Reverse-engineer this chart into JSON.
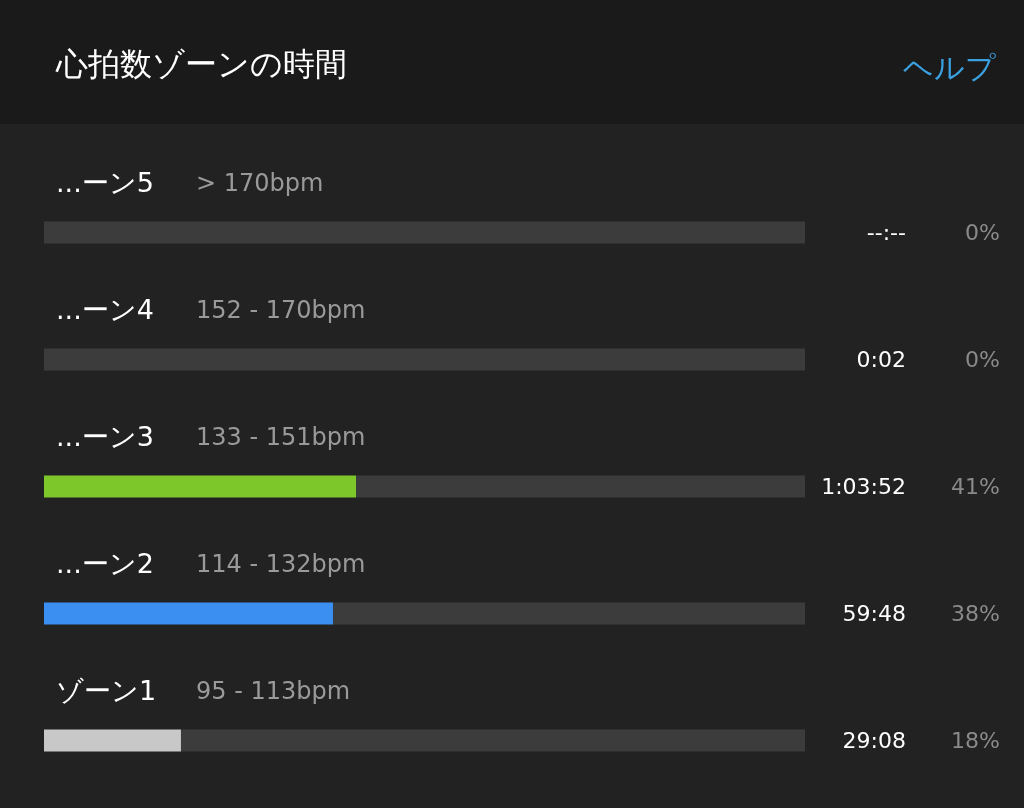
{
  "chart_data": {
    "type": "bar",
    "orientation": "horizontal",
    "stacked": true,
    "title": "心拍数ゾーンの時間",
    "categories": [
      "...ーン5",
      "...ーン4",
      "...ーン3",
      "...ーン2",
      "ゾーン1"
    ],
    "series": [
      {
        "values": [
          0,
          0,
          41,
          38,
          18
        ],
        "colors": [
          "#c8c8c8",
          "#c8c8c8",
          "#7ec72a",
          "#3a8ff0",
          "#c8c8c8"
        ],
        "value_labels": [
          "0%",
          "0%",
          "41%",
          "38%",
          "18%"
        ]
      },
      {
        "values": [
          100,
          100,
          59,
          62,
          82
        ],
        "color": "#3c3c3c"
      }
    ],
    "xlim": [
      0,
      100
    ],
    "annotations": [
      "ヘルプ",
      "> 170bpm",
      "152 - 170bpm",
      "133 - 151bpm",
      "114 - 132bpm",
      "95 - 113bpm",
      "--:--",
      "0:02",
      "1:03:52",
      "59:48",
      "29:08"
    ]
  }
}
